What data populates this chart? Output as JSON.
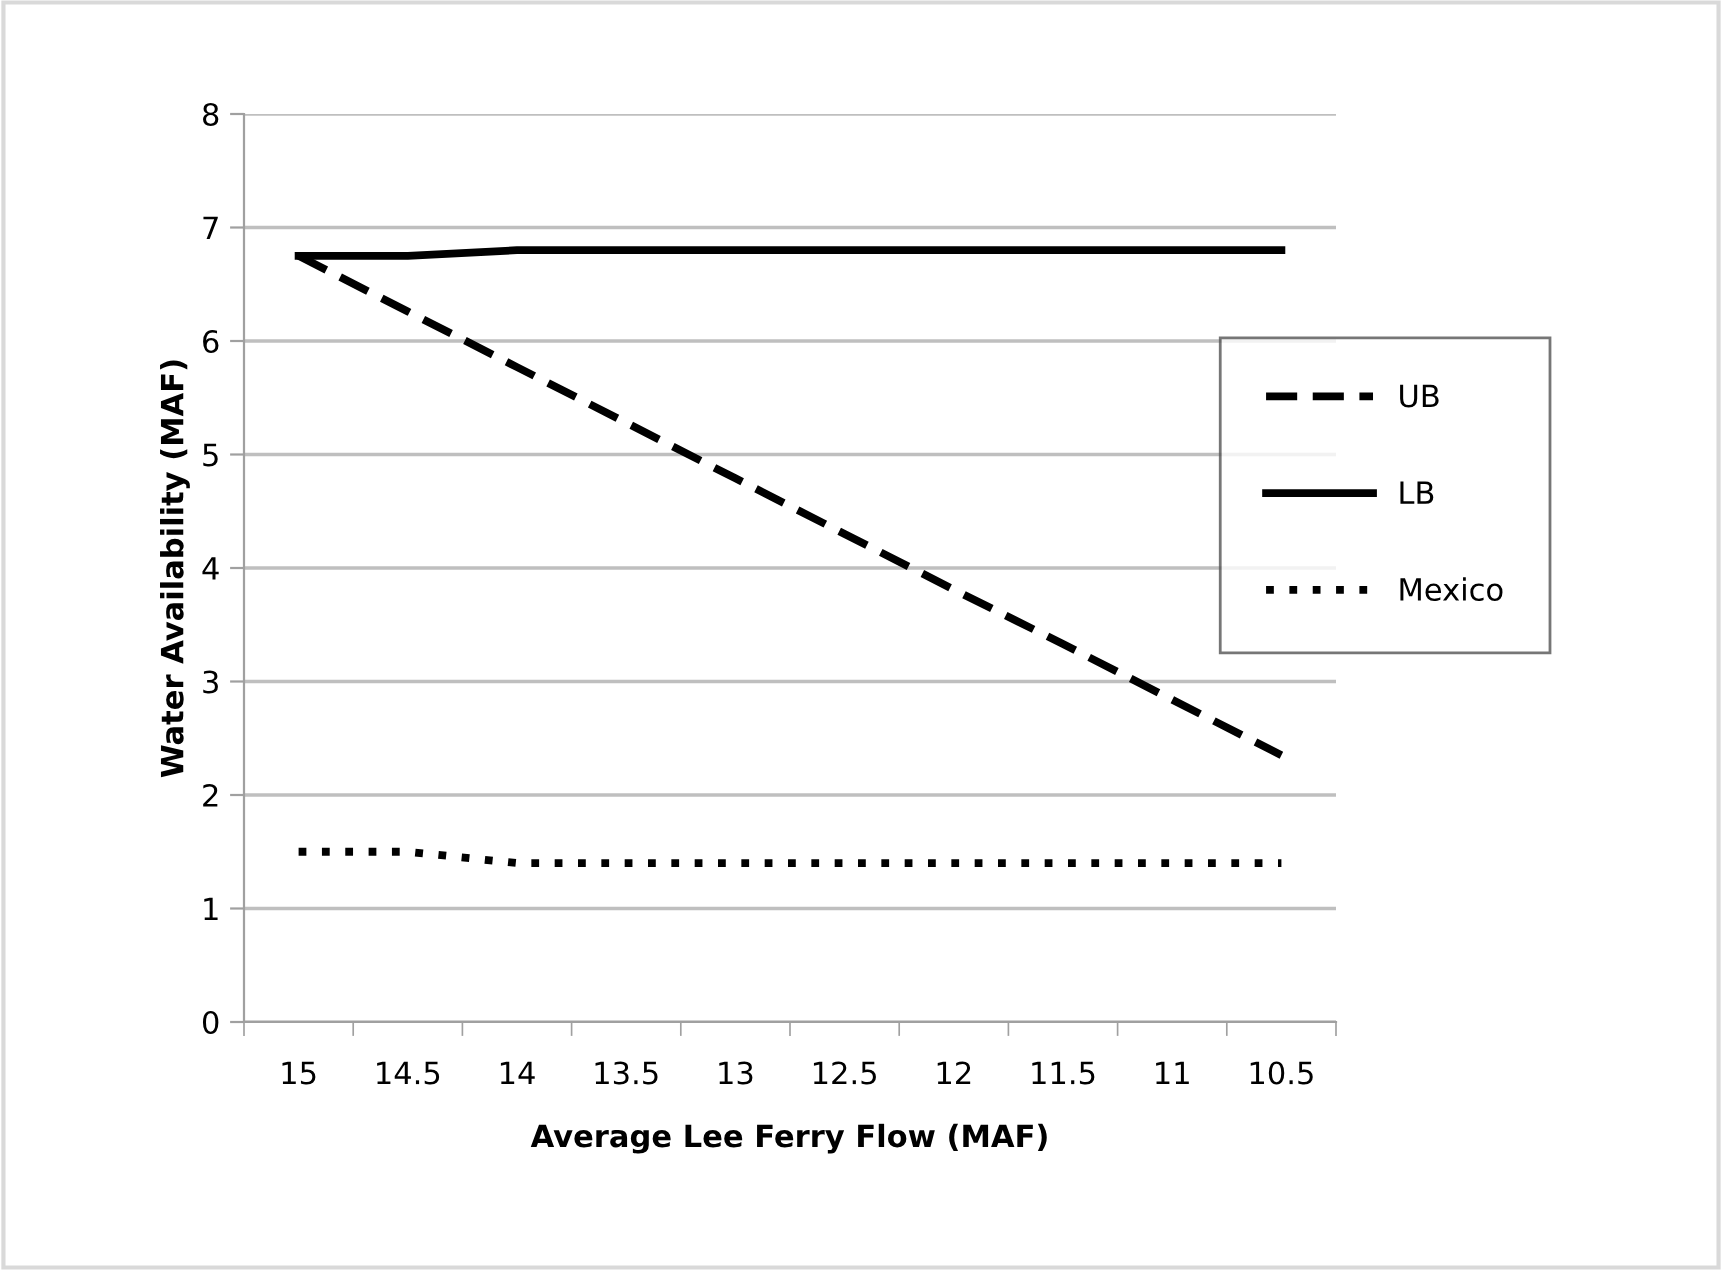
{
  "chart_data": {
    "type": "line",
    "xlabel": "Average Lee Ferry Flow (MAF)",
    "ylabel": "Water Availability (MAF)",
    "categories": [
      "15",
      "14.5",
      "14",
      "13.5",
      "13",
      "12.5",
      "12",
      "11.5",
      "11",
      "10.5"
    ],
    "series": [
      {
        "name": "UB",
        "color": "#000000",
        "line_style": "dashed",
        "values": [
          6.75,
          6.26,
          5.77,
          5.28,
          4.79,
          4.3,
          3.81,
          3.33,
          2.84,
          2.35
        ]
      },
      {
        "name": "LB",
        "color": "#000000",
        "line_style": "solid",
        "values": [
          6.75,
          6.75,
          6.8,
          6.8,
          6.8,
          6.8,
          6.8,
          6.8,
          6.8,
          6.8
        ]
      },
      {
        "name": "Mexico",
        "color": "#000000",
        "line_style": "dotted",
        "values": [
          1.5,
          1.5,
          1.4,
          1.4,
          1.4,
          1.4,
          1.4,
          1.4,
          1.4,
          1.4
        ]
      }
    ],
    "ylim": [
      0,
      8
    ],
    "yticks": [
      0,
      1,
      2,
      3,
      4,
      5,
      6,
      7,
      8
    ],
    "grid": "y",
    "legend": "right",
    "marker": "none"
  }
}
